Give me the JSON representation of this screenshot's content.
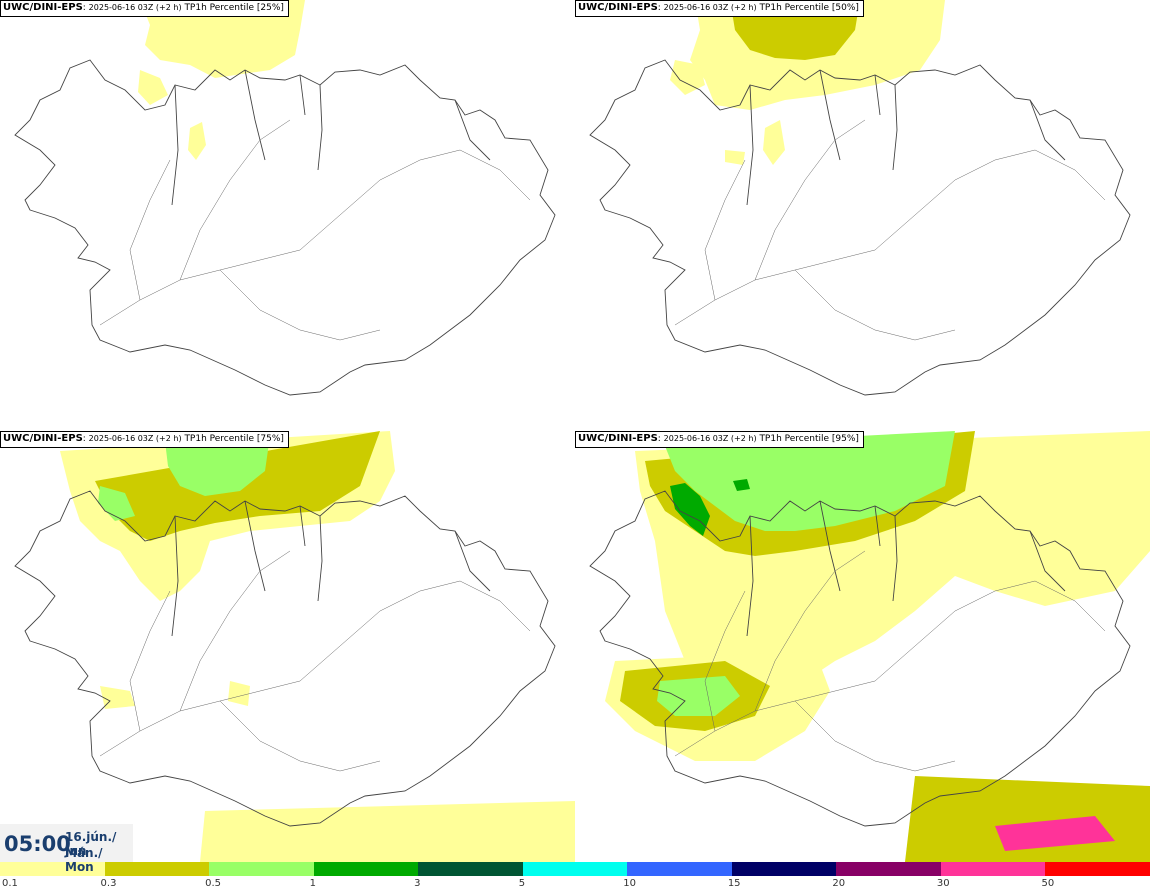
{
  "panels": [
    {
      "model": "UWC/DINI-EPS",
      "date": "2025-06-16 03Z (+2 h)",
      "label": "TP1h Percentile [25%]"
    },
    {
      "model": "UWC/DINI-EPS",
      "date": "2025-06-16 03Z (+2 h)",
      "label": "TP1h Percentile [50%]"
    },
    {
      "model": "UWC/DINI-EPS",
      "date": "2025-06-16 03Z (+2 h)",
      "label": "TP1h Percentile [75%]"
    },
    {
      "model": "UWC/DINI-EPS",
      "date": "2025-06-16 03Z (+2 h)",
      "label": "TP1h Percentile [95%]"
    }
  ],
  "time_box": {
    "time": "05:00",
    "date_line1": "16.jún./ Jun",
    "date_line2": "Mán./ Mon"
  },
  "legend": {
    "labels": [
      "0.1",
      "0.3",
      "0.5",
      "1",
      "3",
      "5",
      "10",
      "15",
      "20",
      "30",
      "50"
    ],
    "colors": [
      "#ffff99",
      "#cccc00",
      "#99ff66",
      "#00aa00",
      "#005533",
      "#00ffee",
      "#3366ff",
      "#000066",
      "#880066",
      "#ff3399",
      "#ff0000"
    ]
  }
}
